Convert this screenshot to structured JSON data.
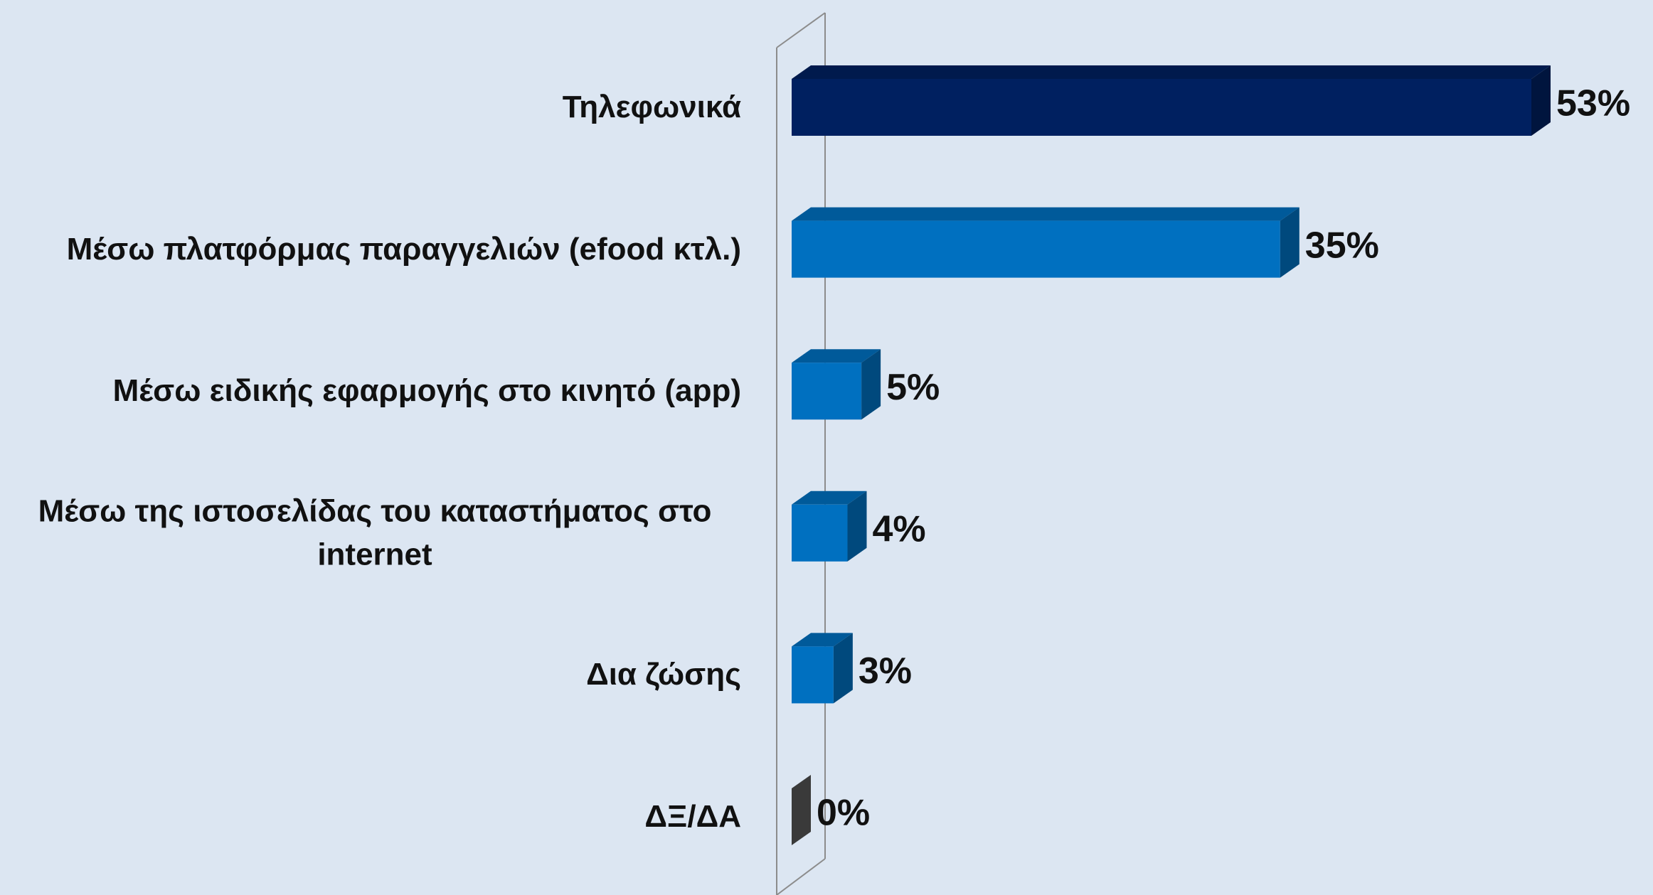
{
  "chart_data": {
    "type": "bar3d_horizontal",
    "categories": [
      "Τηλεφωνικά",
      "Μέσω πλατφόρμας παραγγελιών (efood κτλ.)",
      "Μέσω ειδικής εφαρμογής στο κινητό (app)",
      "Μέσω της ιστοσελίδας του καταστήματος στο internet",
      "Δια ζώσης",
      "ΔΞ/ΔΑ"
    ],
    "values": [
      53,
      35,
      5,
      4,
      3,
      0
    ],
    "value_labels": [
      "53%",
      "35%",
      "5%",
      "4%",
      "3%",
      "0%"
    ],
    "colors": [
      "#002060",
      "#0070c0",
      "#0070c0",
      "#0070c0",
      "#0070c0",
      "#595959"
    ]
  }
}
